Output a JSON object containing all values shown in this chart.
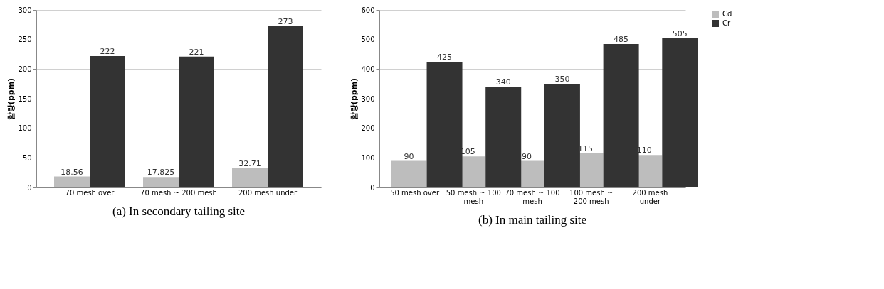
{
  "chart_data": [
    {
      "type": "bar",
      "title": "(a)  In  secondary  tailing  site",
      "ylabel": "함량(ppm)",
      "categories": [
        "70 mesh over",
        "70 mesh ~ 200 mesh",
        "200 mesh under"
      ],
      "series": [
        {
          "name": "Cd",
          "color": "#bdbdbd",
          "values": [
            18.56,
            17.825,
            32.71
          ]
        },
        {
          "name": "Cr",
          "color": "#333333",
          "values": [
            222,
            221,
            273
          ]
        }
      ],
      "ylim": [
        0,
        300
      ],
      "yticks": [
        0,
        50,
        100,
        150,
        200,
        250,
        300
      ],
      "grid": "y",
      "legend": "right",
      "data_labels": true
    },
    {
      "type": "bar",
      "title": "(b)  In  main  tailing  site",
      "ylabel": "함량(ppm)",
      "categories": [
        "50 mesh over",
        "50 mesh ~ 100 mesh",
        "70 mesh ~ 100 mesh",
        "100 mesh ~ 200 mesh",
        "200 mesh under"
      ],
      "series": [
        {
          "name": "Cd",
          "color": "#bdbdbd",
          "values": [
            90,
            105,
            90,
            115,
            110
          ]
        },
        {
          "name": "Cr",
          "color": "#333333",
          "values": [
            425,
            340,
            350,
            485,
            505
          ]
        }
      ],
      "ylim": [
        0,
        600
      ],
      "yticks": [
        0,
        100,
        200,
        300,
        400,
        500,
        600
      ],
      "grid": "y",
      "legend": "right",
      "data_labels": true
    }
  ]
}
